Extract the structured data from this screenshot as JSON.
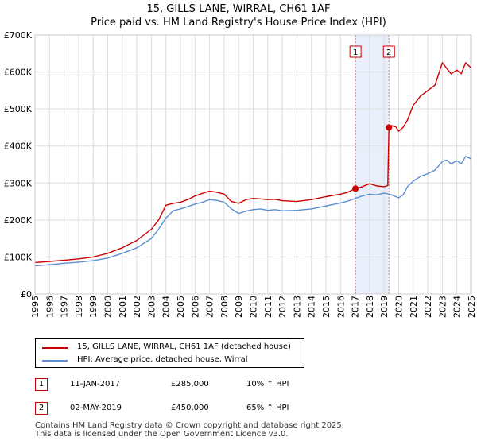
{
  "chart_data": {
    "type": "line",
    "title": "15, GILLS LANE, WIRRAL, CH61 1AF",
    "subtitle": "Price paid vs. HM Land Registry's House Price Index (HPI)",
    "xlabel": "",
    "ylabel": "",
    "xlim": [
      1995.0,
      2025.0
    ],
    "ylim": [
      0,
      700000
    ],
    "y_ticks": [
      0,
      100000,
      200000,
      300000,
      400000,
      500000,
      600000,
      700000
    ],
    "y_tick_labels": [
      "£0",
      "£100K",
      "£200K",
      "£300K",
      "£400K",
      "£500K",
      "£600K",
      "£700K"
    ],
    "x_ticks": [
      1995,
      1996,
      1997,
      1998,
      1999,
      2000,
      2001,
      2002,
      2003,
      2004,
      2005,
      2006,
      2007,
      2008,
      2009,
      2010,
      2011,
      2012,
      2013,
      2014,
      2015,
      2016,
      2017,
      2018,
      2019,
      2020,
      2021,
      2022,
      2023,
      2024,
      2025
    ],
    "x_tick_labels": [
      "1995",
      "1996",
      "1997",
      "1998",
      "1999",
      "2000",
      "2001",
      "2002",
      "2003",
      "2004",
      "2005",
      "2006",
      "2007",
      "2008",
      "2009",
      "2010",
      "2011",
      "2012",
      "2013",
      "2014",
      "2015",
      "2016",
      "2017",
      "2018",
      "2019",
      "2020",
      "2021",
      "2022",
      "2023",
      "2024",
      "2025"
    ],
    "grid": true,
    "series": [
      {
        "name": "15, GILLS LANE, WIRRAL, CH61 1AF (detached house)",
        "color": "#cc0000",
        "x": [
          1995.0,
          1996.0,
          1997.0,
          1998.0,
          1999.0,
          2000.0,
          2001.0,
          2002.0,
          2003.0,
          2003.5,
          2004.0,
          2004.5,
          2005.0,
          2005.5,
          2006.0,
          2006.5,
          2007.0,
          2007.5,
          2008.0,
          2008.5,
          2009.0,
          2009.5,
          2010.0,
          2010.5,
          2011.0,
          2011.5,
          2012.0,
          2013.0,
          2014.0,
          2015.0,
          2016.0,
          2016.5,
          2017.03,
          2017.5,
          2018.0,
          2018.5,
          2019.0,
          2019.25,
          2019.33,
          2019.5,
          2019.8,
          2020.0,
          2020.3,
          2020.6,
          2021.0,
          2021.5,
          2022.0,
          2022.5,
          2023.0,
          2023.3,
          2023.6,
          2024.0,
          2024.3,
          2024.6,
          2025.0
        ],
        "values": [
          85000,
          88000,
          91000,
          95000,
          100000,
          110000,
          125000,
          145000,
          175000,
          200000,
          240000,
          245000,
          248000,
          255000,
          265000,
          272000,
          278000,
          275000,
          270000,
          250000,
          245000,
          255000,
          258000,
          257000,
          255000,
          256000,
          252000,
          250000,
          255000,
          263000,
          270000,
          275000,
          285000,
          290000,
          298000,
          292000,
          290000,
          293000,
          450000,
          455000,
          452000,
          440000,
          450000,
          470000,
          510000,
          535000,
          550000,
          565000,
          625000,
          610000,
          595000,
          605000,
          595000,
          625000,
          610000
        ]
      },
      {
        "name": "HPI: Average price, detached house, Wirral",
        "color": "#5b8fd1",
        "x": [
          1995.0,
          1996.0,
          1997.0,
          1998.0,
          1999.0,
          2000.0,
          2001.0,
          2002.0,
          2003.0,
          2003.5,
          2004.0,
          2004.5,
          2005.0,
          2005.5,
          2006.0,
          2006.5,
          2007.0,
          2007.5,
          2008.0,
          2008.5,
          2009.0,
          2009.5,
          2010.0,
          2010.5,
          2011.0,
          2011.5,
          2012.0,
          2013.0,
          2014.0,
          2015.0,
          2016.0,
          2016.5,
          2017.0,
          2017.5,
          2018.0,
          2018.5,
          2019.0,
          2019.5,
          2020.0,
          2020.3,
          2020.6,
          2021.0,
          2021.5,
          2022.0,
          2022.5,
          2023.0,
          2023.3,
          2023.6,
          2024.0,
          2024.3,
          2024.6,
          2025.0
        ],
        "values": [
          76000,
          79000,
          83000,
          86000,
          90000,
          97000,
          110000,
          125000,
          150000,
          175000,
          205000,
          225000,
          230000,
          236000,
          243000,
          248000,
          255000,
          253000,
          248000,
          230000,
          218000,
          224000,
          228000,
          230000,
          226000,
          228000,
          225000,
          226000,
          230000,
          238000,
          246000,
          251000,
          258000,
          265000,
          270000,
          268000,
          273000,
          268000,
          260000,
          268000,
          290000,
          305000,
          318000,
          325000,
          335000,
          358000,
          362000,
          352000,
          360000,
          352000,
          372000,
          365000
        ]
      }
    ],
    "markers": [
      {
        "label": "1",
        "x": 2017.03,
        "y": 285000
      },
      {
        "label": "2",
        "x": 2019.33,
        "y": 450000
      }
    ],
    "shaded_region": {
      "x": [
        2017.03,
        2019.33
      ]
    }
  },
  "legend": {
    "entries": [
      {
        "label": "15, GILLS LANE, WIRRAL, CH61 1AF (detached house)",
        "color": "#cc0000"
      },
      {
        "label": "HPI: Average price, detached house, Wirral",
        "color": "#5b8fd1"
      }
    ]
  },
  "transactions": [
    {
      "num": "1",
      "date": "11-JAN-2017",
      "price": "£285,000",
      "hpi": "10% ↑ HPI"
    },
    {
      "num": "2",
      "date": "02-MAY-2019",
      "price": "£450,000",
      "hpi": "65% ↑ HPI"
    }
  ],
  "footer": {
    "line1": "Contains HM Land Registry data © Crown copyright and database right 2025.",
    "line2": "This data is licensed under the Open Government Licence v3.0."
  }
}
